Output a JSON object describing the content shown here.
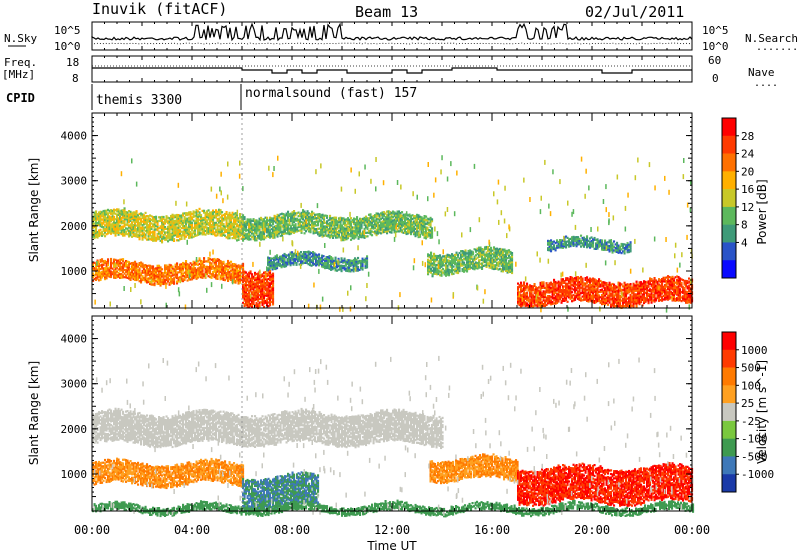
{
  "header": {
    "station": "Inuvik (fitACF)",
    "beam": "Beam 13",
    "date": "02/Jul/2011"
  },
  "summary": {
    "nsky_label": "N.Sky",
    "nsearch_label": "N.Search",
    "nsearch_marker": ".......",
    "nsky_ticks": [
      "10^5",
      "10^0"
    ],
    "nsearch_ticks": [
      "10^5",
      "10^0"
    ],
    "freq_label_top": "Freq.",
    "freq_label_bottom": "[MHz]",
    "freq_ticks": [
      "18",
      "8"
    ],
    "nave_label": "Nave",
    "nave_marker": "....",
    "nave_ticks": [
      "60",
      "0"
    ],
    "cpid_label": "CPID",
    "cpid_segments": [
      {
        "name": "themis 3300",
        "start_hour": 0
      },
      {
        "name": "normalsound (fast) 157",
        "start_hour": 6
      }
    ]
  },
  "chart_data": [
    {
      "type": "heatmap",
      "panel": "power",
      "ylabel": "Slant Range [km]",
      "colorbar_label": "Power [dB]",
      "colorbar_ticks": [
        "28",
        "24",
        "20",
        "16",
        "12",
        "8",
        "4"
      ],
      "colors": [
        "#0a0aff",
        "#2a54c8",
        "#3e9a78",
        "#5cb85c",
        "#c8c828",
        "#ffb000",
        "#ff7000",
        "#ff3a00",
        "#ff0000"
      ],
      "y_ticks": [
        "4000",
        "3000",
        "2000",
        "1000"
      ],
      "ylim": [
        180,
        4500
      ],
      "xlim_hours": [
        0,
        24
      ],
      "bands": [
        {
          "start": 0.0,
          "end": 6.0,
          "low": 1750,
          "high": 2250,
          "value": 16
        },
        {
          "start": 6.0,
          "end": 13.6,
          "low": 1800,
          "high": 2200,
          "value": 12
        },
        {
          "start": 0.0,
          "end": 6.0,
          "low": 800,
          "high": 1150,
          "value": 24
        },
        {
          "start": 6.0,
          "end": 7.2,
          "low": 300,
          "high": 1000,
          "value": 28
        },
        {
          "start": 7.0,
          "end": 11.0,
          "low": 1100,
          "high": 1300,
          "value": 8
        },
        {
          "start": 13.4,
          "end": 16.8,
          "low": 1000,
          "high": 1400,
          "value": 12
        },
        {
          "start": 17.0,
          "end": 24.0,
          "low": 300,
          "high": 750,
          "value": 28
        },
        {
          "start": 18.2,
          "end": 21.5,
          "low": 1500,
          "high": 1650,
          "value": 8
        }
      ]
    },
    {
      "type": "heatmap",
      "panel": "velocity",
      "ylabel": "Slant Range [km]",
      "colorbar_label": "Velocity [m s^-1]",
      "colorbar_ticks": [
        "1000",
        "500",
        "100",
        "25",
        "-25",
        "-100",
        "-500",
        "-1000"
      ],
      "colors": [
        "#1a3aa8",
        "#3e78b8",
        "#3e9a50",
        "#7ac83e",
        "#c8c8c0",
        "#ffa020",
        "#ff7a00",
        "#ff3a00",
        "#ff0000"
      ],
      "y_ticks": [
        "4000",
        "3000",
        "2000",
        "1000"
      ],
      "ylim": [
        180,
        4500
      ],
      "xlim_hours": [
        0,
        24
      ],
      "bands": [
        {
          "start": 0.0,
          "end": 14.0,
          "low": 1700,
          "high": 2300,
          "value": 20
        },
        {
          "start": 0.0,
          "end": 6.0,
          "low": 800,
          "high": 1200,
          "value": -100
        },
        {
          "start": 6.0,
          "end": 9.0,
          "low": 300,
          "high": 900,
          "value": 100
        },
        {
          "start": 13.5,
          "end": 17.0,
          "low": 900,
          "high": 1300,
          "value": -100
        },
        {
          "start": 17.0,
          "end": 24.0,
          "low": 400,
          "high": 1100,
          "value": -500
        },
        {
          "start": 0.0,
          "end": 24.0,
          "low": 180,
          "high": 260,
          "value": 50
        }
      ]
    }
  ],
  "x_axis": {
    "label": "Time UT",
    "ticks": [
      "00:00",
      "04:00",
      "08:00",
      "12:00",
      "16:00",
      "20:00",
      "00:00"
    ]
  }
}
